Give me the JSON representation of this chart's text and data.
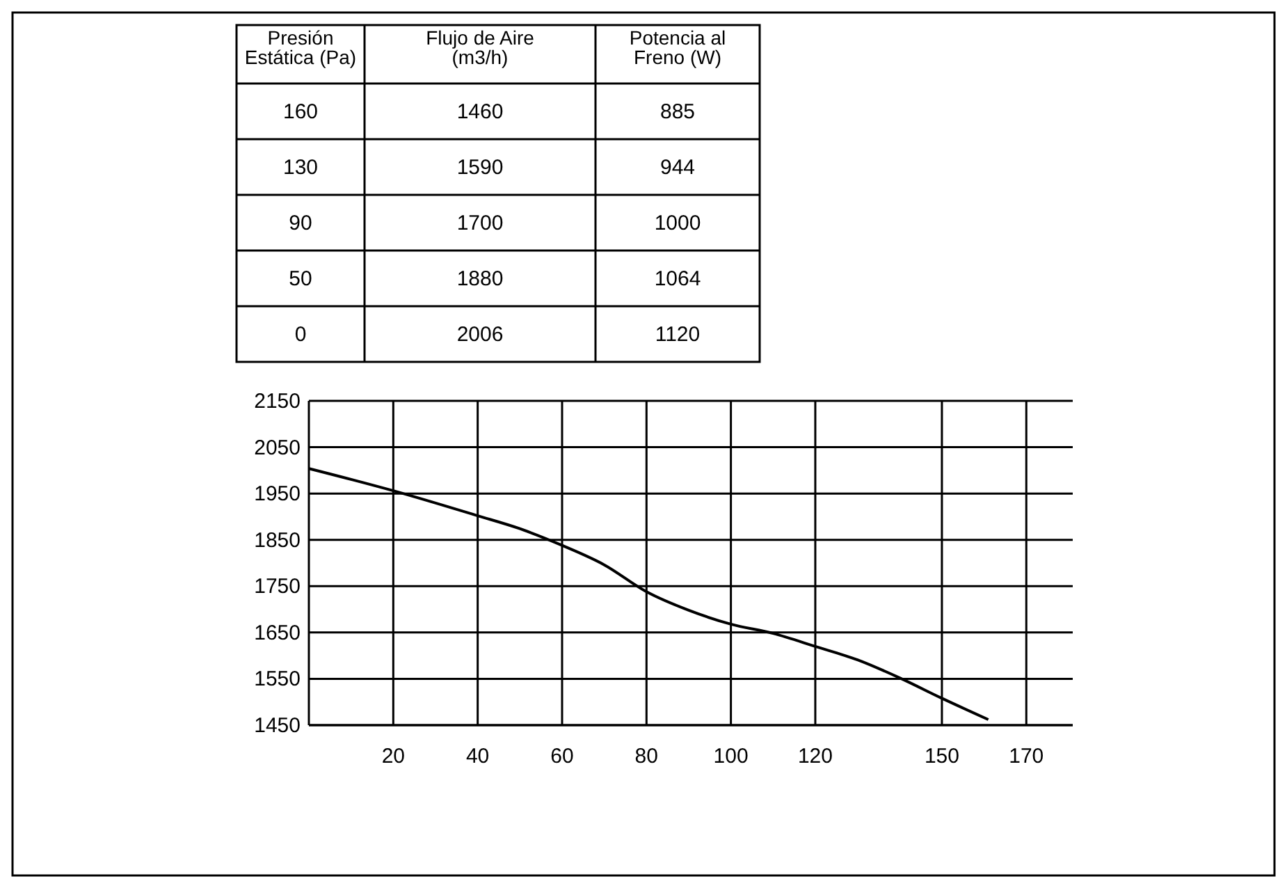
{
  "chart_data": [
    {
      "type": "heatmap",
      "ylabel": "Presión\nEstática (Pa)",
      "categories": [
        "Flujo de Aire\n(m3/h)",
        "Potencia al\nFreno (W)"
      ],
      "y_categories": [
        "160",
        "130",
        "90",
        "50",
        "0"
      ],
      "cells": [
        [
          1460,
          885
        ],
        [
          1590,
          944
        ],
        [
          1700,
          1000
        ],
        [
          1880,
          1064
        ],
        [
          2006,
          1120
        ]
      ],
      "data_labels": true
    },
    {
      "type": "line",
      "x": [
        0,
        20,
        40,
        50,
        60,
        70,
        80,
        90,
        100,
        110,
        120,
        130,
        140,
        150,
        161
      ],
      "values": [
        2004,
        1956,
        1902,
        1874,
        1838,
        1796,
        1738,
        1698,
        1668,
        1648,
        1620,
        1591,
        1552,
        1508,
        1462
      ],
      "color": "#000000",
      "xlim": [
        0,
        181
      ],
      "xticks": [
        20,
        40,
        60,
        80,
        100,
        120,
        150,
        170
      ],
      "ylim": [
        1450,
        2150
      ],
      "yticks": [
        1450,
        1550,
        1650,
        1750,
        1850,
        1950,
        2050,
        2150
      ],
      "grid": true
    }
  ]
}
